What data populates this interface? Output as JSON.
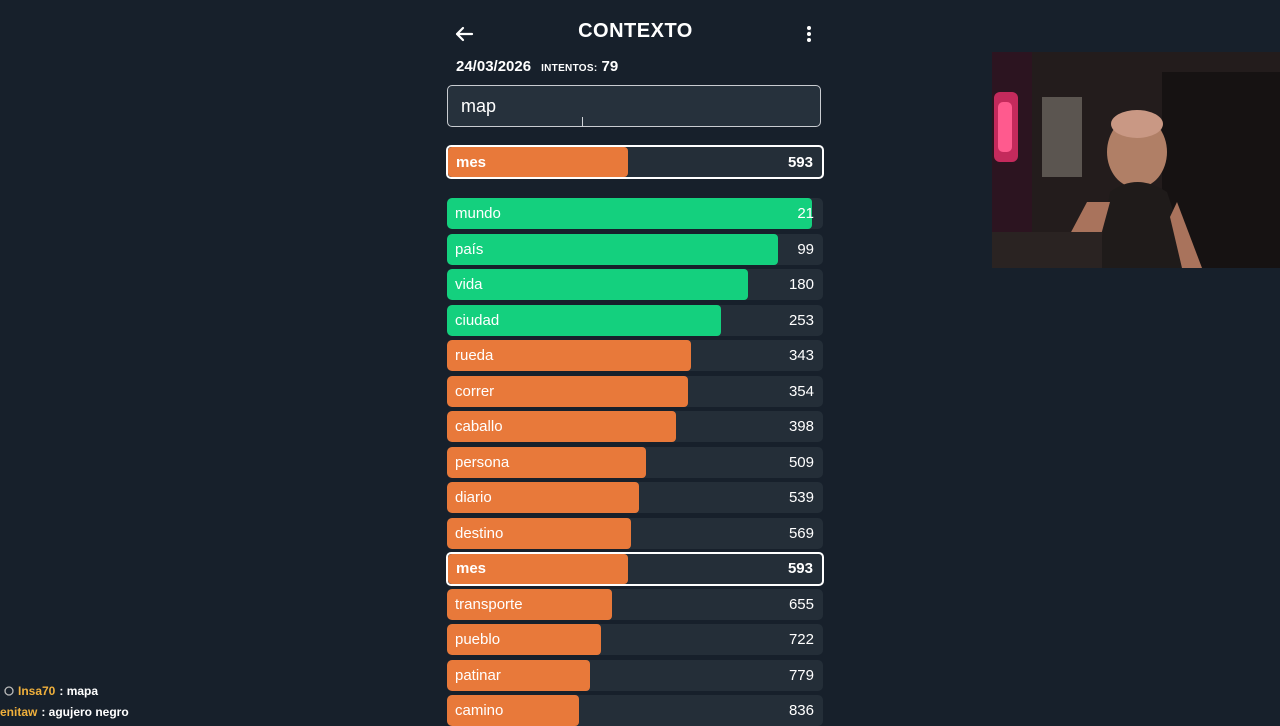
{
  "header": {
    "title": "CONTEXTO",
    "back_icon": "arrow-left-icon",
    "menu_icon": "more-vertical-icon"
  },
  "meta": {
    "date": "24/03/2026",
    "attempts_label": "INTENTOS:",
    "attempts": "79"
  },
  "search": {
    "value": "map"
  },
  "colors": {
    "green": "#14d07e",
    "orange": "#e8793a",
    "track": "#242e38"
  },
  "last_guess": {
    "word": "mes",
    "rank": "593",
    "color": "orange",
    "fill": 0.48
  },
  "guesses": [
    {
      "word": "mundo",
      "rank": "21",
      "color": "green",
      "fill": 0.97
    },
    {
      "word": "país",
      "rank": "99",
      "color": "green",
      "fill": 0.88
    },
    {
      "word": "vida",
      "rank": "180",
      "color": "green",
      "fill": 0.8
    },
    {
      "word": "ciudad",
      "rank": "253",
      "color": "green",
      "fill": 0.73
    },
    {
      "word": "rueda",
      "rank": "343",
      "color": "orange",
      "fill": 0.65
    },
    {
      "word": "correr",
      "rank": "354",
      "color": "orange",
      "fill": 0.64
    },
    {
      "word": "caballo",
      "rank": "398",
      "color": "orange",
      "fill": 0.61
    },
    {
      "word": "persona",
      "rank": "509",
      "color": "orange",
      "fill": 0.53
    },
    {
      "word": "diario",
      "rank": "539",
      "color": "orange",
      "fill": 0.51
    },
    {
      "word": "destino",
      "rank": "569",
      "color": "orange",
      "fill": 0.49
    },
    {
      "word": "mes",
      "rank": "593",
      "color": "orange",
      "fill": 0.48,
      "highlight": true
    },
    {
      "word": "transporte",
      "rank": "655",
      "color": "orange",
      "fill": 0.44
    },
    {
      "word": "pueblo",
      "rank": "722",
      "color": "orange",
      "fill": 0.41
    },
    {
      "word": "patinar",
      "rank": "779",
      "color": "orange",
      "fill": 0.38
    },
    {
      "word": "camino",
      "rank": "836",
      "color": "orange",
      "fill": 0.35
    }
  ],
  "chat": [
    {
      "icon": "chat-badge-icon",
      "user": "Insa70",
      "message": ": mapa"
    },
    {
      "user": "enitaw",
      "message": ": agujero negro"
    }
  ]
}
